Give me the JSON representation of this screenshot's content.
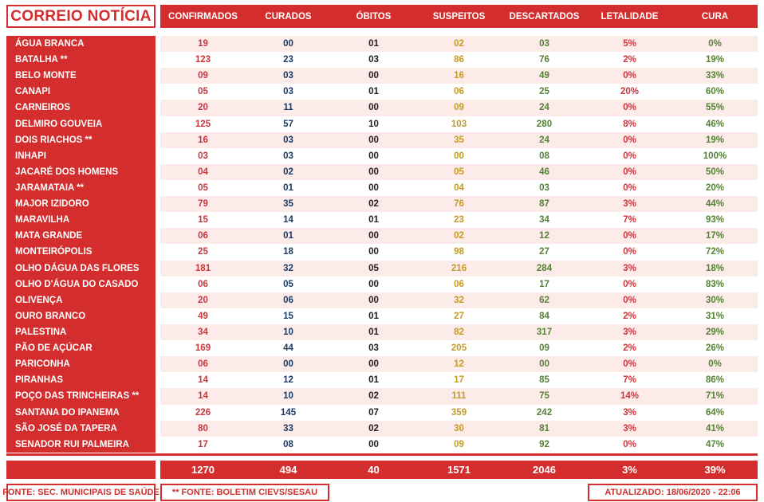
{
  "brand": {
    "title": "CORREIO NOTÍCIA"
  },
  "colors": {
    "primary_red": "#D32D2D",
    "row_stripe_pink": "#FCEBE9",
    "confirmados": "#C9363C",
    "curados": "#1F3A60",
    "obitos": "#1F1F1F",
    "suspeitos": "#C49A26",
    "descartados": "#548235",
    "letalidade": "#C9363C",
    "cura": "#548235"
  },
  "footer": {
    "source_left": "FONTE: SEC. MUNICIPAIS DE SAÚDE",
    "source_mid": "** FONTE: BOLETIM CIEVS/SESAU",
    "updated": "ATUALIZADO: 18/06/2020 - 22:06"
  },
  "chart_data": {
    "type": "table",
    "title": "CORREIO NOTÍCIA",
    "columns": [
      "CONFIRMADOS",
      "CURADOS",
      "ÓBITOS",
      "SUSPEITOS",
      "DESCARTADOS",
      "LETALIDADE",
      "CURA"
    ],
    "rows": [
      {
        "name": "ÁGUA BRANCA",
        "values": [
          "19",
          "00",
          "01",
          "02",
          "03",
          "5%",
          "0%"
        ]
      },
      {
        "name": "BATALHA **",
        "values": [
          "123",
          "23",
          "03",
          "86",
          "76",
          "2%",
          "19%"
        ]
      },
      {
        "name": "BELO MONTE",
        "values": [
          "09",
          "03",
          "00",
          "16",
          "49",
          "0%",
          "33%"
        ]
      },
      {
        "name": "CANAPI",
        "values": [
          "05",
          "03",
          "01",
          "06",
          "25",
          "20%",
          "60%"
        ]
      },
      {
        "name": "CARNEIROS",
        "values": [
          "20",
          "11",
          "00",
          "09",
          "24",
          "0%",
          "55%"
        ]
      },
      {
        "name": "DELMIRO GOUVEIA",
        "values": [
          "125",
          "57",
          "10",
          "103",
          "280",
          "8%",
          "46%"
        ]
      },
      {
        "name": "DOIS RIACHOS **",
        "values": [
          "16",
          "03",
          "00",
          "35",
          "24",
          "0%",
          "19%"
        ]
      },
      {
        "name": "INHAPI",
        "values": [
          "03",
          "03",
          "00",
          "00",
          "08",
          "0%",
          "100%"
        ]
      },
      {
        "name": "JACARÉ DOS HOMENS",
        "values": [
          "04",
          "02",
          "00",
          "05",
          "46",
          "0%",
          "50%"
        ]
      },
      {
        "name": "JARAMATAIA **",
        "values": [
          "05",
          "01",
          "00",
          "04",
          "03",
          "0%",
          "20%"
        ]
      },
      {
        "name": "MAJOR IZIDORO",
        "values": [
          "79",
          "35",
          "02",
          "76",
          "87",
          "3%",
          "44%"
        ]
      },
      {
        "name": "MARAVILHA",
        "values": [
          "15",
          "14",
          "01",
          "23",
          "34",
          "7%",
          "93%"
        ]
      },
      {
        "name": "MATA GRANDE",
        "values": [
          "06",
          "01",
          "00",
          "02",
          "12",
          "0%",
          "17%"
        ]
      },
      {
        "name": "MONTEIRÓPOLIS",
        "values": [
          "25",
          "18",
          "00",
          "98",
          "27",
          "0%",
          "72%"
        ]
      },
      {
        "name": "OLHO DÁGUA DAS FLORES",
        "values": [
          "181",
          "32",
          "05",
          "216",
          "284",
          "3%",
          "18%"
        ]
      },
      {
        "name": "OLHO D'ÁGUA DO CASADO",
        "values": [
          "06",
          "05",
          "00",
          "06",
          "17",
          "0%",
          "83%"
        ]
      },
      {
        "name": "OLIVENÇA",
        "values": [
          "20",
          "06",
          "00",
          "32",
          "62",
          "0%",
          "30%"
        ]
      },
      {
        "name": "OURO BRANCO",
        "values": [
          "49",
          "15",
          "01",
          "27",
          "84",
          "2%",
          "31%"
        ]
      },
      {
        "name": "PALESTINA",
        "values": [
          "34",
          "10",
          "01",
          "82",
          "317",
          "3%",
          "29%"
        ]
      },
      {
        "name": "PÃO DE AÇÚCAR",
        "values": [
          "169",
          "44",
          "03",
          "205",
          "09",
          "2%",
          "26%"
        ]
      },
      {
        "name": "PARICONHA",
        "values": [
          "06",
          "00",
          "00",
          "12",
          "00",
          "0%",
          "0%"
        ]
      },
      {
        "name": "PIRANHAS",
        "values": [
          "14",
          "12",
          "01",
          "17",
          "85",
          "7%",
          "86%"
        ]
      },
      {
        "name": "POÇO DAS TRINCHEIRAS **",
        "values": [
          "14",
          "10",
          "02",
          "111",
          "75",
          "14%",
          "71%"
        ]
      },
      {
        "name": "SANTANA DO IPANEMA",
        "values": [
          "226",
          "145",
          "07",
          "359",
          "242",
          "3%",
          "64%"
        ]
      },
      {
        "name": "SÃO JOSÉ DA TAPERA",
        "values": [
          "80",
          "33",
          "02",
          "30",
          "81",
          "3%",
          "41%"
        ]
      },
      {
        "name": "SENADOR RUI PALMEIRA",
        "values": [
          "17",
          "08",
          "00",
          "09",
          "92",
          "0%",
          "47%"
        ]
      }
    ],
    "totals": [
      "1270",
      "494",
      "40",
      "1571",
      "2046",
      "3%",
      "39%"
    ]
  }
}
